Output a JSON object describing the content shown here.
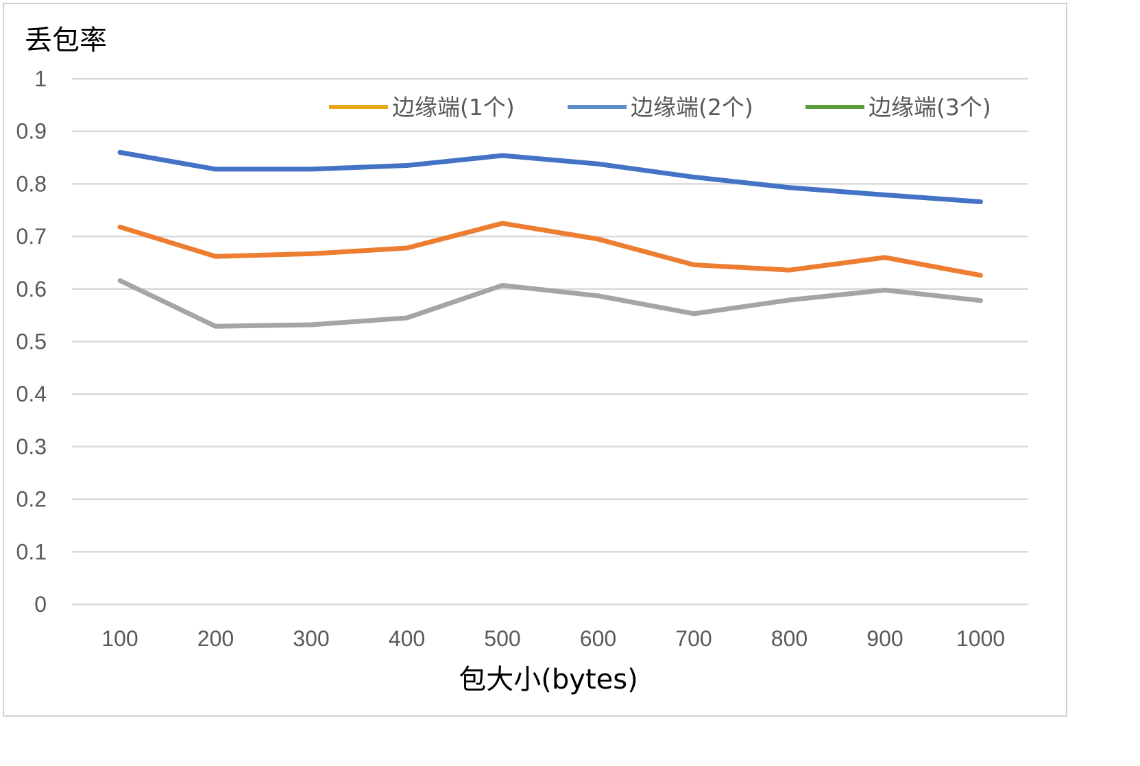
{
  "chart_data": {
    "type": "line",
    "title": "",
    "xlabel": "包大小(bytes)",
    "ylabel": "丢包率",
    "categories": [
      "100",
      "200",
      "300",
      "400",
      "500",
      "600",
      "700",
      "800",
      "900",
      "1000"
    ],
    "y_ticks": [
      "0",
      "0.1",
      "0.2",
      "0.3",
      "0.4",
      "0.5",
      "0.6",
      "0.7",
      "0.8",
      "0.9",
      "1"
    ],
    "ylim": [
      0,
      1
    ],
    "grid": true,
    "legend_position": "top-right",
    "legend": [
      {
        "label": "边缘端(1个)",
        "color": "#E6A817"
      },
      {
        "label": "边缘端(2个)",
        "color": "#5B8DC8"
      },
      {
        "label": "边缘端(3个)",
        "color": "#5C9E3C"
      }
    ],
    "series": [
      {
        "color": "#4472C4",
        "values": [
          0.86,
          0.828,
          0.828,
          0.835,
          0.854,
          0.838,
          0.813,
          0.793,
          0.779,
          0.766
        ]
      },
      {
        "color": "#ED7D31",
        "values": [
          0.718,
          0.662,
          0.667,
          0.678,
          0.725,
          0.695,
          0.646,
          0.636,
          0.66,
          0.626
        ]
      },
      {
        "color": "#A5A5A5",
        "values": [
          0.616,
          0.529,
          0.532,
          0.545,
          0.607,
          0.587,
          0.553,
          0.579,
          0.598,
          0.578
        ]
      }
    ]
  }
}
